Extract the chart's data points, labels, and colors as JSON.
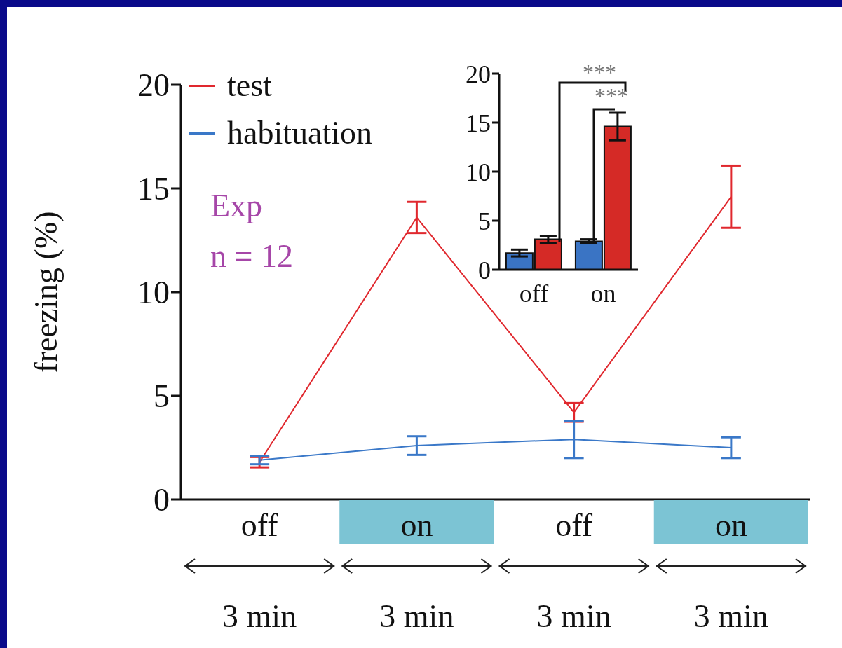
{
  "chart_data": [
    {
      "type": "line",
      "ylabel": "freezing (%)",
      "categories": [
        "off",
        "on",
        "off",
        "on"
      ],
      "series": [
        {
          "name": "test",
          "color": "#e0282e",
          "values": [
            1.8,
            13.6,
            4.2,
            14.6
          ],
          "errors": [
            0.25,
            0.75,
            0.45,
            1.5
          ]
        },
        {
          "name": "habituation",
          "color": "#3a78c8",
          "values": [
            1.9,
            2.6,
            2.9,
            2.5
          ],
          "errors": [
            0.2,
            0.45,
            0.9,
            0.5
          ]
        }
      ],
      "ylim": [
        0,
        20
      ],
      "yticks": [
        0,
        5,
        10,
        15,
        20
      ],
      "legend": "top left",
      "marker": "none",
      "grid": false,
      "annotations": [
        "Exp",
        "n = 12",
        "3 min",
        "3 min",
        "3 min",
        "3 min"
      ]
    },
    {
      "type": "bar",
      "categories": [
        "off",
        "on"
      ],
      "series": [
        {
          "color": "#3a74c4",
          "values": [
            1.7,
            2.9
          ],
          "errors": [
            0.35,
            0.2
          ]
        },
        {
          "color": "#d52a26",
          "values": [
            3.1,
            14.6
          ],
          "errors": [
            0.35,
            1.4
          ]
        }
      ],
      "ylim": [
        0,
        20
      ],
      "yticks": [
        0,
        5,
        10,
        15,
        20
      ],
      "grid": false,
      "annotations": [
        "***",
        "***"
      ]
    }
  ]
}
